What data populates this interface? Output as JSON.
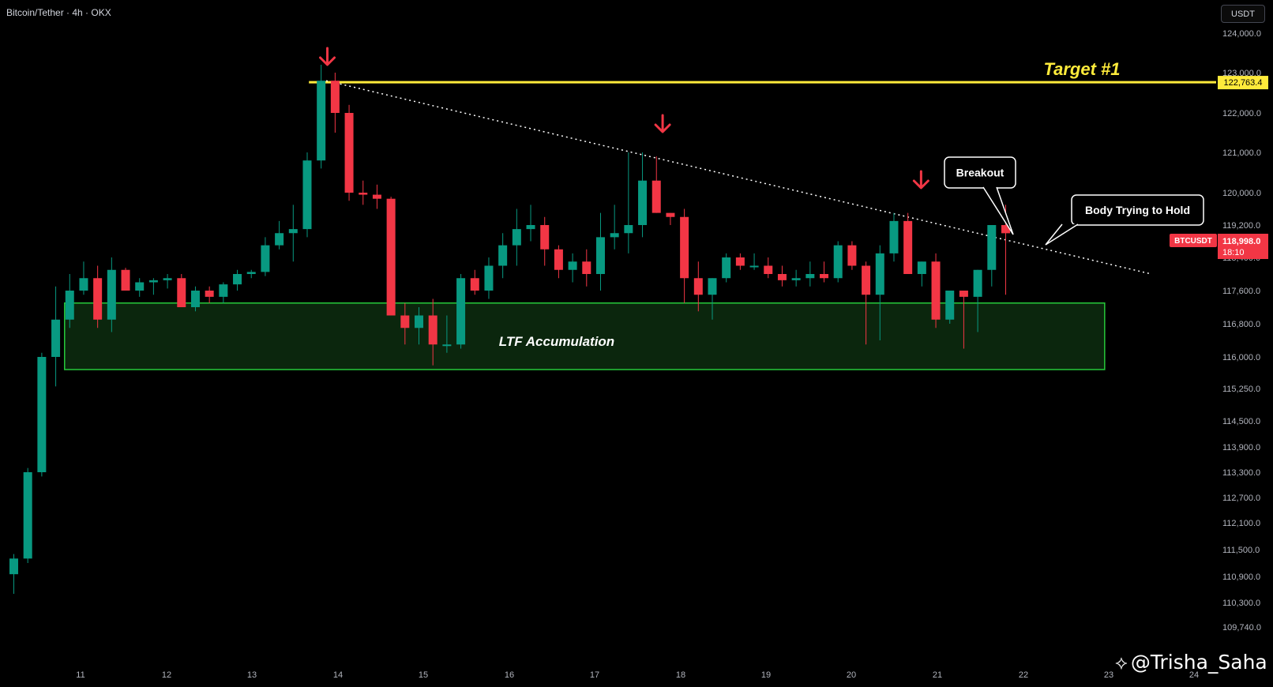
{
  "header": {
    "symbol_title": "Bitcoin/Tether · 4h · OKX"
  },
  "toolbar": {
    "currency_label": "USDT"
  },
  "watermark": {
    "handle": "@Trisha_Saha"
  },
  "colors": {
    "bull": "#089981",
    "bear": "#f23645",
    "target_line": "#ffeb3b",
    "zone_border": "#26c93a",
    "zone_fill": "#0c2a0e",
    "arrow": "#f23645"
  },
  "price_badge": {
    "symbol": "BTCUSDT",
    "price": "118,998.0",
    "countdown": "18:10"
  },
  "target_badge": {
    "price": "122,763.4"
  },
  "annotations": {
    "target": "Target #1",
    "zone": "LTF Accumulation",
    "breakout": "Breakout",
    "hold": "Body Trying to Hold"
  },
  "chart_data": {
    "type": "candlestick",
    "title": "Bitcoin/Tether · 4h · OKX",
    "x_axis": {
      "ticks": [
        "11",
        "12",
        "13",
        "14",
        "15",
        "16",
        "17",
        "18",
        "19",
        "20",
        "21",
        "22",
        "23",
        "24"
      ]
    },
    "y_axis": {
      "ticks": [
        "124,000.0",
        "123,000.0",
        "122,000.0",
        "121,000.0",
        "120,000.0",
        "119,200.0",
        "118,400.0",
        "117,600.0",
        "116,800.0",
        "116,000.0",
        "115,250.0",
        "114,500.0",
        "113,900.0",
        "113,300.0",
        "112,700.0",
        "112,100.0",
        "111,500.0",
        "110,900.0",
        "110,300.0",
        "109,740.0"
      ],
      "scale": "log-like"
    },
    "ohlc": [
      [
        110950,
        111400,
        110500,
        111300
      ],
      [
        111300,
        113400,
        111200,
        113300
      ],
      [
        113300,
        116100,
        113200,
        116000
      ],
      [
        116000,
        117700,
        115300,
        116900
      ],
      [
        116900,
        118000,
        116700,
        117600
      ],
      [
        117600,
        118300,
        117500,
        117900
      ],
      [
        117900,
        118200,
        116700,
        116900
      ],
      [
        116900,
        118400,
        116600,
        118100
      ],
      [
        118100,
        118150,
        117600,
        117600
      ],
      [
        117600,
        117900,
        117450,
        117800
      ],
      [
        117800,
        117900,
        117500,
        117850
      ],
      [
        117850,
        118000,
        117650,
        117900
      ],
      [
        117900,
        118000,
        117200,
        117200
      ],
      [
        117200,
        117700,
        117100,
        117600
      ],
      [
        117600,
        117700,
        117300,
        117450
      ],
      [
        117450,
        117800,
        117300,
        117750
      ],
      [
        117750,
        118100,
        117600,
        118000
      ],
      [
        118000,
        118100,
        117900,
        118050
      ],
      [
        118050,
        118900,
        117950,
        118700
      ],
      [
        118700,
        119300,
        118600,
        119000
      ],
      [
        119000,
        119700,
        118300,
        119100
      ],
      [
        119100,
        121000,
        118900,
        120800
      ],
      [
        120800,
        123200,
        120600,
        122800
      ],
      [
        122800,
        123000,
        121500,
        122000
      ],
      [
        122000,
        122200,
        119800,
        120000
      ],
      [
        120000,
        120300,
        119700,
        119950
      ],
      [
        119950,
        120200,
        119600,
        119850
      ],
      [
        119850,
        119900,
        117000,
        117000
      ],
      [
        117000,
        117300,
        116300,
        116700
      ],
      [
        116700,
        117200,
        116300,
        117000
      ],
      [
        117000,
        117400,
        115800,
        116300
      ],
      [
        116300,
        117000,
        116100,
        116300
      ],
      [
        116300,
        118000,
        116200,
        117900
      ],
      [
        117900,
        118100,
        117500,
        117600
      ],
      [
        117600,
        118400,
        117400,
        118200
      ],
      [
        118200,
        119000,
        117900,
        118700
      ],
      [
        118700,
        119600,
        118200,
        119100
      ],
      [
        119100,
        119700,
        118800,
        119200
      ],
      [
        119200,
        119400,
        118200,
        118600
      ],
      [
        118600,
        118700,
        117900,
        118100
      ],
      [
        118100,
        118500,
        117800,
        118300
      ],
      [
        118300,
        118600,
        117700,
        118000
      ],
      [
        118000,
        119500,
        117600,
        118900
      ],
      [
        118900,
        119700,
        118600,
        119000
      ],
      [
        119000,
        121000,
        118500,
        119200
      ],
      [
        119200,
        121000,
        118900,
        120300
      ],
      [
        120300,
        120900,
        119500,
        119500
      ],
      [
        119500,
        119500,
        119200,
        119400
      ],
      [
        119400,
        119600,
        117300,
        117900
      ],
      [
        117900,
        118300,
        117100,
        117500
      ],
      [
        117500,
        117900,
        116900,
        117900
      ],
      [
        117900,
        118500,
        117800,
        118400
      ],
      [
        118400,
        118500,
        118100,
        118200
      ],
      [
        118200,
        118500,
        118100,
        118200
      ],
      [
        118200,
        118400,
        117900,
        118000
      ],
      [
        118000,
        118200,
        117700,
        117850
      ],
      [
        117850,
        118100,
        117700,
        117900
      ],
      [
        117900,
        118300,
        117700,
        118000
      ],
      [
        118000,
        118300,
        117800,
        117900
      ],
      [
        117900,
        118800,
        117800,
        118700
      ],
      [
        118700,
        118800,
        118100,
        118200
      ],
      [
        118200,
        118300,
        116300,
        117500
      ],
      [
        117500,
        118700,
        116400,
        118500
      ],
      [
        118500,
        119500,
        118300,
        119300
      ],
      [
        119300,
        119500,
        118000,
        118000
      ],
      [
        118000,
        118300,
        117700,
        118300
      ],
      [
        118300,
        118500,
        116700,
        116900
      ],
      [
        116900,
        117600,
        116800,
        117600
      ],
      [
        117600,
        117600,
        116200,
        117450
      ],
      [
        117450,
        118100,
        116600,
        118100
      ],
      [
        118100,
        119200,
        117700,
        119200
      ],
      [
        119200,
        119700,
        117500,
        118998
      ]
    ],
    "horizontal_line": {
      "price": 122763.4,
      "label": "Target #1"
    },
    "zone": {
      "from_index": 4,
      "to_index": 78,
      "low": 115700,
      "high": 117300,
      "label": "LTF Accumulation"
    },
    "trendline": {
      "from": [
        22.5,
        122800
      ],
      "to": [
        82,
        118200
      ],
      "style": "dotted"
    },
    "arrows": [
      22.5,
      46.5,
      65
    ]
  }
}
